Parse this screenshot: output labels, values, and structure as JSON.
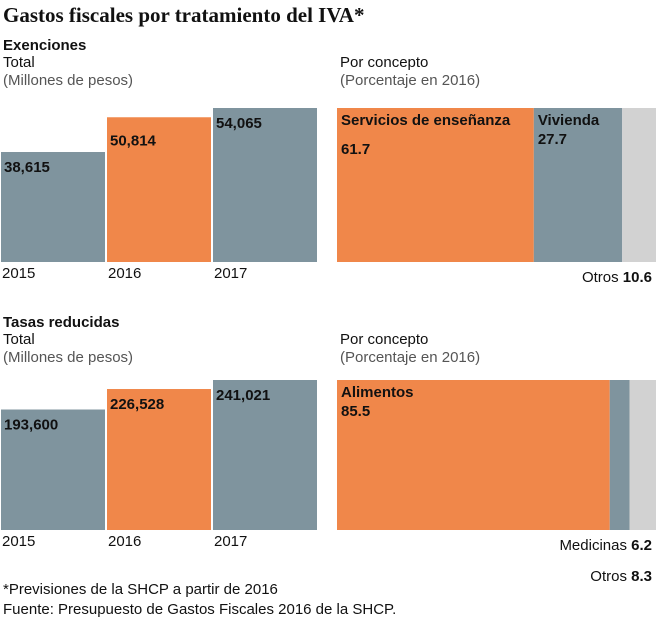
{
  "title": "Gastos fiscales por tratamiento del IVA*",
  "chart_data": [
    {
      "type": "bar",
      "section": "Exenciones",
      "title": "Total",
      "subtitle": "(Millones de pesos)",
      "categories": [
        "2015",
        "2016",
        "2017"
      ],
      "values": [
        38615,
        50814,
        54065
      ],
      "value_labels": [
        "38,615",
        "50,814",
        "54,065"
      ],
      "colors": [
        "#7f949e",
        "#f0874a",
        "#7f949e"
      ]
    },
    {
      "type": "stacked-bar",
      "title": "Por concepto",
      "subtitle": "(Porcentaje en 2016)",
      "series": [
        {
          "name": "Servicios de enseñanza",
          "color": "#f0874a",
          "values": [
            61.7
          ]
        },
        {
          "name": "Vivienda",
          "color": "#7f949e",
          "values": [
            27.7
          ]
        },
        {
          "name": "Otros",
          "color": "#d2d2d2",
          "values": [
            10.6
          ]
        }
      ]
    },
    {
      "type": "bar",
      "section": "Tasas reducidas",
      "title": "Total",
      "subtitle": "(Millones de pesos)",
      "categories": [
        "2015",
        "2016",
        "2017"
      ],
      "values": [
        193600,
        226528,
        241021
      ],
      "value_labels": [
        "193,600",
        "226,528",
        "241,021"
      ],
      "colors": [
        "#7f949e",
        "#f0874a",
        "#7f949e"
      ]
    },
    {
      "type": "stacked-bar",
      "title": "Por concepto",
      "subtitle": "(Porcentaje en 2016)",
      "series": [
        {
          "name": "Alimentos",
          "color": "#f0874a",
          "values": [
            85.5
          ]
        },
        {
          "name": "Medicinas",
          "color": "#7f949e",
          "values": [
            6.2
          ]
        },
        {
          "name": "Otros",
          "color": "#d2d2d2",
          "values": [
            8.3
          ]
        }
      ]
    }
  ],
  "footnotes": [
    "*Previsiones de la SHCP a partir de 2016",
    "Fuente: Presupuesto de Gastos Fiscales 2016 de la SHCP."
  ]
}
